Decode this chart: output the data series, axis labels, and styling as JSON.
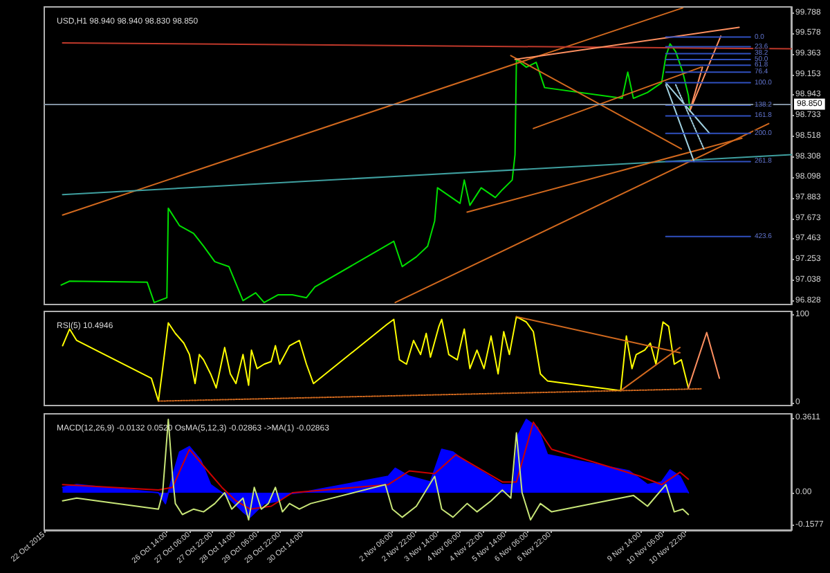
{
  "chart_data": [
    {
      "type": "line",
      "title": "USD,H1 98.940 98.940 98.830 98.850",
      "xlim": [
        "2015-10-22T23:00",
        "2015-11-14T01:00"
      ],
      "ylim": [
        96.79,
        99.85
      ],
      "yticks": [
        96.828,
        97.038,
        97.253,
        97.463,
        97.673,
        97.883,
        98.098,
        98.308,
        98.518,
        98.733,
        98.943,
        99.153,
        99.363,
        99.578,
        99.788
      ],
      "tick_labels": "y",
      "marker": "none",
      "series": [
        {
          "color": "#00e000",
          "x": [
            "2015-10-23T11:00",
            "2015-10-23T17:00",
            "2015-10-26T00:00",
            "2015-10-26T05:00",
            "2015-10-26T14:00",
            "2015-10-26T15:00",
            "2015-10-26T23:00",
            "2015-10-27T09:00",
            "2015-10-27T16:00",
            "2015-10-28T00:00",
            "2015-10-28T10:00",
            "2015-10-28T20:00",
            "2015-10-29T05:00",
            "2015-10-29T11:00",
            "2015-10-29T21:00",
            "2015-10-30T07:00",
            "2015-10-30T17:00",
            "2015-10-30T23:00",
            "2015-11-02T07:00",
            "2015-11-02T13:00",
            "2015-11-02T23:00",
            "2015-11-03T07:00",
            "2015-11-03T12:00",
            "2015-11-03T14:00",
            "2015-11-03T22:00",
            "2015-11-04T06:00",
            "2015-11-04T09:00",
            "2015-11-04T13:00",
            "2015-11-04T21:00",
            "2015-11-05T07:00",
            "2015-11-05T12:00",
            "2015-11-05T19:00",
            "2015-11-05T21:00",
            "2015-11-05T22:00",
            "2015-11-06T05:00",
            "2015-11-06T12:00",
            "2015-11-06T18:00",
            "2015-11-09T01:00",
            "2015-11-09T05:00",
            "2015-11-09T09:00",
            "2015-11-09T19:00",
            "2015-11-10T05:00",
            "2015-11-10T08:00",
            "2015-11-10T11:00",
            "2015-11-10T15:00",
            "2015-11-10T20:00",
            "2015-11-11T00:00",
            "2015-11-11T01:00"
          ],
          "values": [
            96.99,
            97.03,
            97.02,
            96.81,
            96.86,
            97.78,
            97.6,
            97.52,
            97.39,
            97.23,
            97.18,
            96.83,
            96.91,
            96.81,
            96.89,
            96.89,
            96.86,
            96.97,
            97.44,
            97.18,
            97.28,
            97.39,
            97.65,
            97.99,
            97.91,
            97.83,
            98.07,
            97.81,
            97.99,
            97.89,
            97.97,
            98.07,
            98.33,
            99.31,
            99.23,
            99.28,
            99.02,
            98.91,
            99.18,
            98.91,
            98.97,
            99.07,
            99.34,
            99.47,
            99.39,
            99.18,
            98.94,
            98.81
          ]
        },
        {
          "color": "#d2691e",
          "x": [
            "2015-10-23T12:00",
            "2015-11-10T20:00"
          ],
          "values": [
            97.71,
            99.84
          ]
        },
        {
          "color": "#c0392b",
          "x": [
            "2015-10-23T12:00",
            "2015-11-14T01:00"
          ],
          "values": [
            99.48,
            99.42
          ]
        },
        {
          "color": "#3fa0a0",
          "x": [
            "2015-10-23T12:00",
            "2015-11-14T01:00"
          ],
          "values": [
            97.92,
            98.33
          ]
        },
        {
          "color": "#d2691e",
          "x": [
            "2015-11-02T08:00",
            "2015-11-13T09:00"
          ],
          "values": [
            96.81,
            98.65
          ]
        },
        {
          "color": "#d2691e",
          "x": [
            "2015-11-04T11:00",
            "2015-11-12T14:00"
          ],
          "values": [
            97.74,
            98.5
          ]
        },
        {
          "color": "#d2691e",
          "x": [
            "2015-11-05T18:00",
            "2015-11-10T19:00"
          ],
          "values": [
            99.35,
            98.39
          ]
        },
        {
          "color": "#d2691e",
          "x": [
            "2015-11-06T10:00",
            "2015-11-11T09:00"
          ],
          "values": [
            98.6,
            99.23
          ]
        },
        {
          "color": "#ff9060",
          "x": [
            "2015-11-05T21:00",
            "2015-11-12T12:00"
          ],
          "values": [
            99.31,
            99.64
          ]
        },
        {
          "color": "#ff9060",
          "x": [
            "2015-11-11T01:00",
            "2015-11-11T23:00"
          ],
          "values": [
            98.78,
            99.55
          ]
        },
        {
          "color": "#ff9060",
          "x": [
            "2015-11-11T01:00",
            "2015-11-11T10:00"
          ],
          "values": [
            98.78,
            99.23
          ]
        },
        {
          "color": "#a0d0e0",
          "x": [
            "2015-11-10T08:00",
            "2015-11-11T15:00"
          ],
          "values": [
            99.07,
            98.55
          ]
        },
        {
          "color": "#a0d0e0",
          "x": [
            "2015-11-10T08:00",
            "2015-11-11T04:00"
          ],
          "values": [
            99.05,
            98.26
          ]
        },
        {
          "color": "#a0d0e0",
          "line_style": "dotted",
          "x": [
            "2015-11-10T15:00",
            "2015-11-11T11:00"
          ],
          "values": [
            99.05,
            98.39
          ]
        },
        {
          "color": "#3050c0",
          "x": [
            "2015-11-10T08:00",
            "2015-11-12T20:00"
          ],
          "values": [
            99.54,
            99.54
          ]
        },
        {
          "color": "#3050c0",
          "x": [
            "2015-11-10T08:00",
            "2015-11-12T20:00"
          ],
          "values": [
            99.44,
            99.44
          ]
        },
        {
          "color": "#3050c0",
          "x": [
            "2015-11-10T08:00",
            "2015-11-12T20:00"
          ],
          "values": [
            99.37,
            99.37
          ]
        },
        {
          "color": "#3050c0",
          "x": [
            "2015-11-10T08:00",
            "2015-11-12T20:00"
          ],
          "values": [
            99.31,
            99.31
          ]
        },
        {
          "color": "#3050c0",
          "x": [
            "2015-11-10T08:00",
            "2015-11-12T20:00"
          ],
          "values": [
            99.25,
            99.25
          ]
        },
        {
          "color": "#3050c0",
          "x": [
            "2015-11-10T08:00",
            "2015-11-12T20:00"
          ],
          "values": [
            99.18,
            99.18
          ]
        },
        {
          "color": "#3050c0",
          "x": [
            "2015-11-10T08:00",
            "2015-11-12T20:00"
          ],
          "values": [
            99.07,
            99.07
          ]
        },
        {
          "color": "#3050c0",
          "x": [
            "2015-11-10T08:00",
            "2015-11-12T20:00"
          ],
          "values": [
            98.84,
            98.84
          ]
        },
        {
          "color": "#3050c0",
          "x": [
            "2015-11-10T08:00",
            "2015-11-12T20:00"
          ],
          "values": [
            98.73,
            98.73
          ]
        },
        {
          "color": "#3050c0",
          "x": [
            "2015-11-10T08:00",
            "2015-11-12T20:00"
          ],
          "values": [
            98.55,
            98.55
          ]
        },
        {
          "color": "#3050c0",
          "x": [
            "2015-11-10T08:00",
            "2015-11-12T20:00"
          ],
          "values": [
            98.26,
            98.26
          ]
        },
        {
          "color": "#3050c0",
          "x": [
            "2015-11-10T08:00",
            "2015-11-12T20:00"
          ],
          "values": [
            97.49,
            97.49
          ]
        }
      ],
      "ref_lines": [
        {
          "axis": "y",
          "value": 98.85,
          "label": "98.850",
          "color": "#8090a0"
        }
      ],
      "annotations": [
        {
          "text": "0.0",
          "x": "2015-11-12T20:00",
          "y": 99.54
        },
        {
          "text": "23.6",
          "x": "2015-11-12T20:00",
          "y": 99.44
        },
        {
          "text": "38.2",
          "x": "2015-11-12T20:00",
          "y": 99.37
        },
        {
          "text": "50.0",
          "x": "2015-11-12T20:00",
          "y": 99.31
        },
        {
          "text": "61.8",
          "x": "2015-11-12T20:00",
          "y": 99.25
        },
        {
          "text": "76.4",
          "x": "2015-11-12T20:00",
          "y": 99.18
        },
        {
          "text": "100.0",
          "x": "2015-11-12T20:00",
          "y": 99.07
        },
        {
          "text": "138.2",
          "x": "2015-11-12T20:00",
          "y": 98.84
        },
        {
          "text": "161.8",
          "x": "2015-11-12T20:00",
          "y": 98.73
        },
        {
          "text": "200.0",
          "x": "2015-11-12T20:00",
          "y": 98.55
        },
        {
          "text": "261.8",
          "x": "2015-11-12T20:00",
          "y": 98.26
        },
        {
          "text": "423.6",
          "x": "2015-11-12T20:00",
          "y": 97.49
        }
      ]
    },
    {
      "type": "line",
      "title": "RSI(5) 10.4946",
      "xlim": [
        "2015-10-22T23:00",
        "2015-11-14T01:00"
      ],
      "ylim": [
        -3,
        104
      ],
      "yticks": [
        0,
        100
      ],
      "tick_labels": "y",
      "marker": "none",
      "series": [
        {
          "color": "#ffff00",
          "x": [
            "2015-10-23T12:00",
            "2015-10-23T17:00",
            "2015-10-23T22:00",
            "2015-10-26T03:00",
            "2015-10-26T08:00",
            "2015-10-26T11:00",
            "2015-10-26T15:00",
            "2015-10-26T20:00",
            "2015-10-27T02:00",
            "2015-10-27T06:00",
            "2015-10-27T10:00",
            "2015-10-27T13:00",
            "2015-10-27T16:00",
            "2015-10-27T21:00",
            "2015-10-28T01:00",
            "2015-10-28T07:00",
            "2015-10-28T11:00",
            "2015-10-28T15:00",
            "2015-10-28T20:00",
            "2015-10-29T00:00",
            "2015-10-29T02:00",
            "2015-10-29T06:00",
            "2015-10-29T11:00",
            "2015-10-29T16:00",
            "2015-10-29T19:00",
            "2015-10-29T22:00",
            "2015-10-30T05:00",
            "2015-10-30T12:00",
            "2015-10-30T17:00",
            "2015-10-30T22:00",
            "2015-11-02T02:00",
            "2015-11-02T07:00",
            "2015-11-02T11:00",
            "2015-11-02T16:00",
            "2015-11-02T21:00",
            "2015-11-03T02:00",
            "2015-11-03T06:00",
            "2015-11-03T09:00",
            "2015-11-03T15:00",
            "2015-11-03T17:00",
            "2015-11-03T22:00",
            "2015-11-04T04:00",
            "2015-11-04T09:00",
            "2015-11-04T13:00",
            "2015-11-04T18:00",
            "2015-11-04T23:00",
            "2015-11-05T04:00",
            "2015-11-05T09:00",
            "2015-11-05T13:00",
            "2015-11-05T17:00",
            "2015-11-05T22:00",
            "2015-11-06T05:00",
            "2015-11-06T10:00",
            "2015-11-06T15:00",
            "2015-11-06T20:00",
            "2015-11-09T00:00",
            "2015-11-09T04:00",
            "2015-11-09T08:00",
            "2015-11-09T11:00",
            "2015-11-09T17:00",
            "2015-11-09T21:00",
            "2015-11-10T01:00",
            "2015-11-10T06:00",
            "2015-11-10T10:00",
            "2015-11-10T14:00",
            "2015-11-10T19:00",
            "2015-11-11T00:00"
          ],
          "values": [
            65,
            84,
            71,
            28,
            2,
            39,
            91,
            79,
            68,
            55,
            22,
            55,
            49,
            33,
            17,
            63,
            33,
            22,
            55,
            20,
            60,
            39,
            44,
            47,
            65,
            44,
            65,
            71,
            44,
            22,
            89,
            95,
            49,
            44,
            71,
            55,
            79,
            52,
            87,
            95,
            55,
            49,
            84,
            39,
            60,
            39,
            76,
            33,
            81,
            55,
            98,
            92,
            81,
            33,
            25,
            14,
            76,
            39,
            55,
            60,
            68,
            44,
            92,
            87,
            44,
            49,
            17
          ]
        },
        {
          "color": "#d2691e",
          "line_style": "dotted",
          "x": [
            "2015-10-26T08:00",
            "2015-11-11T09:00"
          ],
          "values": [
            2,
            16
          ]
        },
        {
          "color": "#d2691e",
          "x": [
            "2015-11-05T22:00",
            "2015-11-10T18:00"
          ],
          "values": [
            98,
            57
          ]
        },
        {
          "color": "#d2691e",
          "x": [
            "2015-11-09T00:00",
            "2015-11-10T18:00"
          ],
          "values": [
            14,
            63
          ]
        },
        {
          "color": "#ff9060",
          "x": [
            "2015-11-11T00:00",
            "2015-11-11T13:00",
            "2015-11-11T22:00"
          ],
          "values": [
            17,
            80,
            28
          ]
        }
      ]
    },
    {
      "type": "line",
      "title": "MACD(12,26,9) -0.0132 0.0520 OsMA(5,12,3) -0.02863 ->MA(1) -0.02863",
      "xlim": [
        "2015-10-22T23:00",
        "2015-11-14T01:00"
      ],
      "ylim": [
        -0.18,
        0.38
      ],
      "yticks": [
        -0.1577,
        {
          "value": 0,
          "label": "0.00"
        },
        0.3611
      ],
      "marker": "none",
      "xticks": [
        {
          "value": "2015-10-22T23:00",
          "label": "22 Oct 2015"
        },
        {
          "value": "2015-10-26T14:00",
          "label": "26 Oct 14:00"
        },
        {
          "value": "2015-10-27T06:00",
          "label": "27 Oct 06:00"
        },
        {
          "value": "2015-10-27T22:00",
          "label": "27 Oct 22:00"
        },
        {
          "value": "2015-10-28T14:00",
          "label": "28 Oct 14:00"
        },
        {
          "value": "2015-10-29T06:00",
          "label": "29 Oct 06:00"
        },
        {
          "value": "2015-10-29T22:00",
          "label": "29 Oct 22:00"
        },
        {
          "value": "2015-10-30T14:00",
          "label": "30 Oct 14:00"
        },
        {
          "value": "2015-11-02T06:00",
          "label": "2 Nov 06:00"
        },
        {
          "value": "2015-11-02T22:00",
          "label": "2 Nov 22:00"
        },
        {
          "value": "2015-11-03T14:00",
          "label": "3 Nov 14:00"
        },
        {
          "value": "2015-11-04T06:00",
          "label": "4 Nov 06:00"
        },
        {
          "value": "2015-11-04T22:00",
          "label": "4 Nov 22:00"
        },
        {
          "value": "2015-11-05T14:00",
          "label": "5 Nov 14:00"
        },
        {
          "value": "2015-11-06T06:00",
          "label": "6 Nov 06:00"
        },
        {
          "value": "2015-11-06T22:00",
          "label": "6 Nov 22:00"
        },
        {
          "value": "2015-11-09T14:00",
          "label": "9 Nov 14:00"
        },
        {
          "value": "2015-11-10T06:00",
          "label": "10 Nov 06:00"
        },
        {
          "value": "2015-11-10T22:00",
          "label": "10 Nov 22:00"
        }
      ],
      "series": [
        {
          "type": "area",
          "color": "#0000ff",
          "x": [
            "2015-10-23T12:00",
            "2015-10-23T22:00",
            "2015-10-26T08:00",
            "2015-10-26T13:00",
            "2015-10-26T18:00",
            "2015-10-26T23:00",
            "2015-10-27T06:00",
            "2015-10-27T14:00",
            "2015-10-27T21:00",
            "2015-10-28T05:00",
            "2015-10-28T12:00",
            "2015-10-28T20:00",
            "2015-10-29T01:00",
            "2015-10-29T11:00",
            "2015-10-29T21:00",
            "2015-10-30T05:00",
            "2015-10-30T17:00",
            "2015-11-02T03:00",
            "2015-11-02T08:00",
            "2015-11-02T18:00",
            "2015-11-03T09:00",
            "2015-11-03T17:00",
            "2015-11-04T01:00",
            "2015-11-04T11:00",
            "2015-11-04T21:00",
            "2015-11-05T12:00",
            "2015-11-05T20:00",
            "2015-11-05T23:00",
            "2015-11-06T05:00",
            "2015-11-06T13:00",
            "2015-11-06T20:00",
            "2015-11-09T06:00",
            "2015-11-09T19:00",
            "2015-11-10T05:00",
            "2015-11-10T11:00",
            "2015-11-10T18:00",
            "2015-11-11T00:00"
          ],
          "values": [
            0.026,
            0.039,
            0,
            -0.052,
            0.079,
            0.196,
            0.222,
            0.157,
            0.039,
            0,
            -0.039,
            -0.092,
            -0.118,
            -0.052,
            -0.039,
            -0.005,
            0.005,
            0.079,
            0.118,
            0.079,
            0.052,
            0.209,
            0.196,
            0.144,
            0.105,
            0.039,
            0.039,
            0.275,
            0.353,
            0.314,
            0.183,
            0.105,
            0.039,
            0.052,
            0.11,
            0.079,
            0
          ]
        },
        {
          "color": "#cc0000",
          "x": [
            "2015-10-23T12:00",
            "2015-10-26T08:00",
            "2015-10-26T18:00",
            "2015-10-27T06:00",
            "2015-10-27T19:00",
            "2015-10-28T05:00",
            "2015-10-28T15:00",
            "2015-10-29T01:00",
            "2015-10-29T16:00",
            "2015-10-30T07:00",
            "2015-11-02T03:00",
            "2015-11-02T18:00",
            "2015-11-03T12:00",
            "2015-11-04T03:00",
            "2015-11-04T16:00",
            "2015-11-05T12:00",
            "2015-11-05T22:00",
            "2015-11-06T10:00",
            "2015-11-06T23:00",
            "2015-11-09T14:00",
            "2015-11-10T05:00",
            "2015-11-10T18:00",
            "2015-11-11T00:00"
          ],
          "values": [
            0.039,
            0.013,
            0.026,
            0.209,
            0.105,
            0.026,
            -0.039,
            -0.079,
            -0.065,
            0,
            0.039,
            0.105,
            0.092,
            0.183,
            0.131,
            0.052,
            0.052,
            0.34,
            0.209,
            0.079,
            0.039,
            0.099,
            0.065
          ]
        },
        {
          "color": "#c8e678",
          "x": [
            "2015-10-23T12:00",
            "2015-10-23T22:00",
            "2015-10-26T08:00",
            "2015-10-26T11:00",
            "2015-10-26T15:00",
            "2015-10-26T18:00",
            "2015-10-26T20:00",
            "2015-10-27T01:00",
            "2015-10-27T09:00",
            "2015-10-27T16:00",
            "2015-10-28T00:00",
            "2015-10-28T07:00",
            "2015-10-28T12:00",
            "2015-10-28T20:00",
            "2015-10-29T00:00",
            "2015-10-29T04:00",
            "2015-10-29T09:00",
            "2015-10-29T14:00",
            "2015-10-29T19:00",
            "2015-10-30T00:00",
            "2015-10-30T05:00",
            "2015-10-30T12:00",
            "2015-10-30T20:00",
            "2015-11-02T01:00",
            "2015-11-02T06:00",
            "2015-11-02T13:00",
            "2015-11-02T23:00",
            "2015-11-03T12:00",
            "2015-11-03T17:00",
            "2015-11-04T01:00",
            "2015-11-04T11:00",
            "2015-11-04T18:00",
            "2015-11-05T04:00",
            "2015-11-05T12:00",
            "2015-11-05T18:00",
            "2015-11-05T22:00",
            "2015-11-06T02:00",
            "2015-11-06T08:00",
            "2015-11-06T15:00",
            "2015-11-06T23:00",
            "2015-11-09T09:00",
            "2015-11-09T19:00",
            "2015-11-10T08:00",
            "2015-11-10T14:00",
            "2015-11-10T20:00",
            "2015-11-11T00:00"
          ],
          "values": [
            -0.039,
            -0.026,
            -0.079,
            0,
            0.353,
            0.079,
            -0.052,
            -0.105,
            -0.079,
            -0.092,
            -0.052,
            0,
            -0.079,
            -0.026,
            -0.131,
            0.026,
            -0.079,
            -0.052,
            0.026,
            -0.092,
            -0.052,
            -0.079,
            -0.052,
            0.039,
            -0.079,
            -0.118,
            -0.065,
            0.079,
            -0.079,
            -0.118,
            -0.052,
            -0.092,
            -0.039,
            0.013,
            -0.026,
            0.288,
            0,
            -0.131,
            -0.052,
            -0.092,
            -0.013,
            -0.065,
            0.039,
            -0.092,
            -0.079,
            -0.105
          ]
        }
      ]
    }
  ]
}
